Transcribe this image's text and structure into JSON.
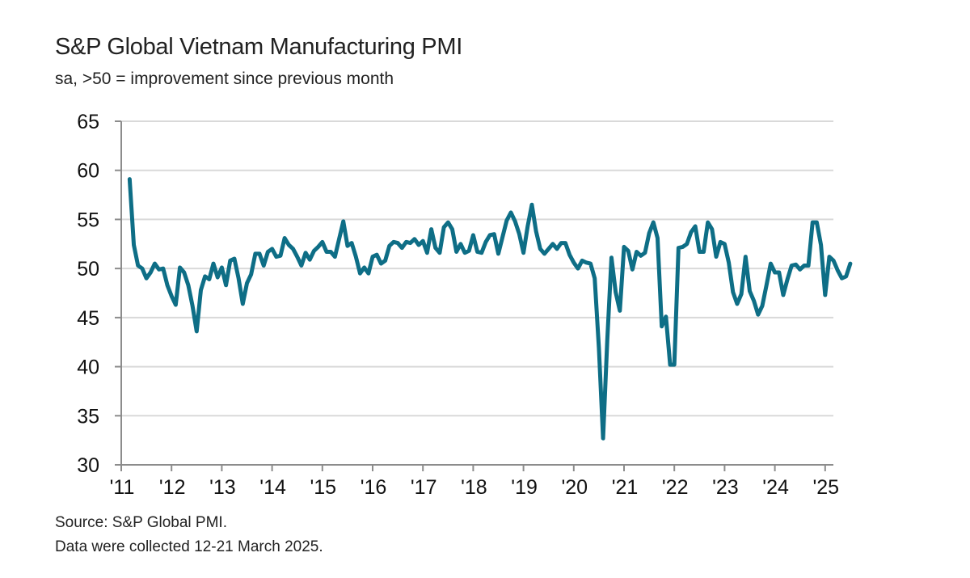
{
  "chart_data": {
    "type": "line",
    "title": "S&P Global Vietnam Manufacturing PMI",
    "subtitle": "sa, >50 = improvement since previous month",
    "xlabel": "",
    "ylabel": "",
    "ylim": [
      30,
      65
    ],
    "yticks": [
      "30",
      "35",
      "40",
      "45",
      "50",
      "55",
      "60",
      "65"
    ],
    "xticks": [
      "'11",
      "'12",
      "'13",
      "'14",
      "'15",
      "'16",
      "'17",
      "'18",
      "'19",
      "'20",
      "'21",
      "'22",
      "'23",
      "'24",
      "'25"
    ],
    "grid": true,
    "start": "2011-03",
    "frequency": "monthly",
    "series": [
      {
        "name": "Vietnam Manufacturing PMI",
        "color": "#0e6e86",
        "values": [
          59.1,
          52.4,
          50.3,
          50.0,
          49.0,
          49.6,
          50.5,
          49.9,
          50.0,
          48.3,
          47.2,
          46.3,
          50.1,
          49.6,
          48.3,
          46.2,
          43.6,
          47.8,
          49.2,
          48.9,
          50.5,
          49.1,
          50.1,
          48.3,
          50.8,
          51.0,
          49.0,
          46.4,
          48.5,
          49.4,
          51.5,
          51.5,
          50.3,
          51.7,
          52.0,
          51.2,
          51.3,
          53.1,
          52.4,
          52.0,
          51.2,
          50.3,
          51.6,
          50.9,
          51.8,
          52.2,
          52.7,
          51.7,
          51.7,
          51.2,
          53.0,
          54.8,
          52.3,
          52.6,
          51.2,
          49.5,
          50.1,
          49.5,
          51.2,
          51.4,
          50.5,
          50.8,
          52.3,
          52.7,
          52.6,
          52.1,
          52.7,
          52.6,
          53.0,
          52.4,
          52.8,
          51.6,
          54.0,
          52.1,
          51.6,
          54.2,
          54.7,
          54.0,
          51.7,
          52.5,
          51.6,
          51.8,
          53.4,
          51.7,
          51.6,
          52.7,
          53.4,
          53.5,
          51.5,
          53.2,
          54.9,
          55.7,
          54.8,
          53.5,
          51.6,
          54.3,
          56.5,
          53.8,
          52.0,
          51.5,
          52.0,
          52.5,
          52.0,
          52.6,
          52.6,
          51.4,
          50.6,
          50.0,
          50.8,
          50.6,
          50.5,
          49.0,
          41.9,
          32.7,
          42.7,
          51.1,
          47.6,
          45.7,
          52.2,
          51.8,
          49.9,
          51.7,
          51.3,
          51.6,
          53.6,
          54.7,
          53.1,
          44.1,
          45.1,
          40.2,
          40.2,
          52.1,
          52.2,
          52.5,
          53.7,
          54.3,
          51.7,
          51.7,
          54.7,
          54.0,
          51.2,
          52.7,
          52.5,
          50.6,
          47.6,
          46.4,
          47.4,
          51.2,
          47.7,
          46.7,
          45.3,
          46.2,
          48.3,
          50.5,
          49.6,
          49.6,
          47.3,
          48.9,
          50.3,
          50.4,
          49.9,
          50.3,
          50.3,
          54.7,
          54.7,
          52.4,
          47.3,
          51.2,
          50.8,
          49.8,
          49.0,
          49.2,
          50.5
        ]
      }
    ]
  },
  "footer": {
    "source": "Source: S&P Global PMI.",
    "note": "Data were collected 12-21 March 2025."
  }
}
